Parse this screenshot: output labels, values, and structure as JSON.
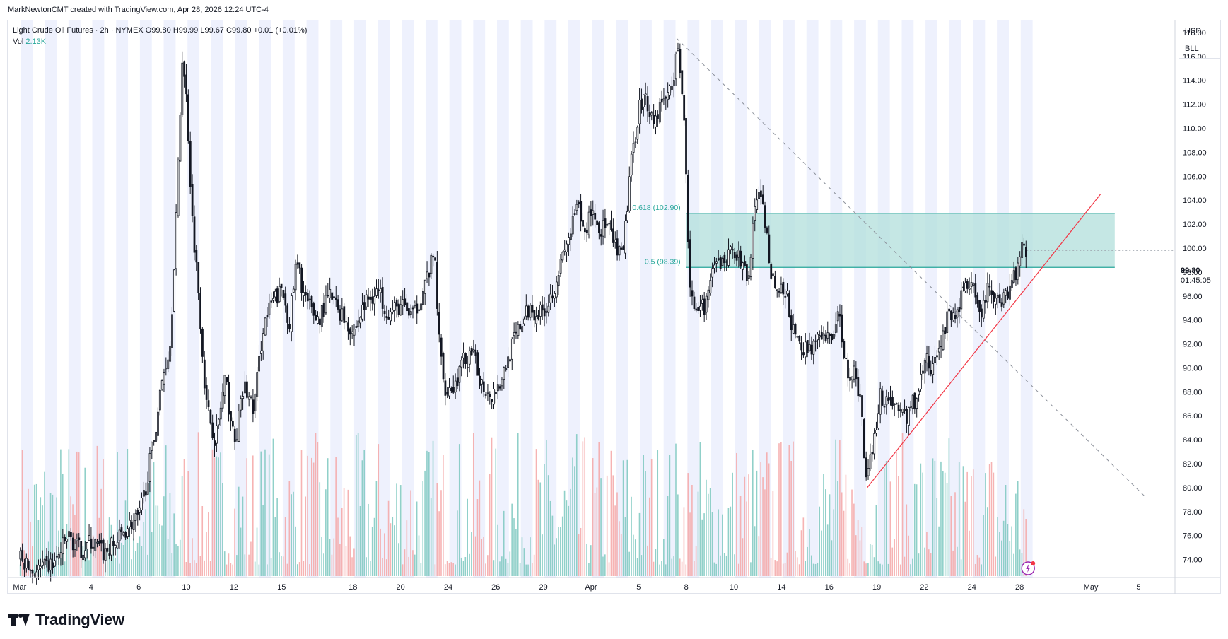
{
  "header": {
    "byline": "MarkNewtonCMT created with TradingView.com, Apr 28, 2026 12:24 UTC-4"
  },
  "legend": {
    "symbol": "Light Crude Oil Futures · 2h · NYMEX",
    "ohlc": "O99.80 H99.99 L99.67 C99.80 +0.01 (+0.01%)",
    "vol_label": "Vol",
    "vol_value": "2.13K"
  },
  "currency": {
    "ccy": "USD",
    "unit": "BLL"
  },
  "last_price": {
    "value": "99.80",
    "countdown": "01:45:05"
  },
  "footer": {
    "brand": "TradingView"
  },
  "colors": {
    "up_volume": "#7dc8c0",
    "down_volume": "#f4a6a6",
    "fib_zone": "#b2dfdb",
    "fib_line": "#26a69a",
    "trendline": "#f23645",
    "session_band": "#eef1fd"
  },
  "chart_data": {
    "type": "candlestick",
    "y_range": [
      72.5,
      119.0
    ],
    "y_ticks": [
      "118.00",
      "116.00",
      "114.00",
      "112.00",
      "110.00",
      "108.00",
      "106.00",
      "104.00",
      "102.00",
      "100.00",
      "98.00",
      "96.00",
      "94.00",
      "92.00",
      "90.00",
      "88.00",
      "86.00",
      "84.00",
      "82.00",
      "80.00",
      "78.00",
      "76.00",
      "74.00"
    ],
    "x_ticks": [
      {
        "label": "Mar",
        "pos": 0.0
      },
      {
        "label": "4",
        "pos": 3
      },
      {
        "label": "6",
        "pos": 5
      },
      {
        "label": "10",
        "pos": 7
      },
      {
        "label": "12",
        "pos": 9
      },
      {
        "label": "15",
        "pos": 11
      },
      {
        "label": "18",
        "pos": 14
      },
      {
        "label": "20",
        "pos": 16
      },
      {
        "label": "24",
        "pos": 18
      },
      {
        "label": "26",
        "pos": 20
      },
      {
        "label": "29",
        "pos": 22
      },
      {
        "label": "Apr",
        "pos": 24
      },
      {
        "label": "5",
        "pos": 26
      },
      {
        "label": "8",
        "pos": 28
      },
      {
        "label": "10",
        "pos": 30
      },
      {
        "label": "14",
        "pos": 32
      },
      {
        "label": "16",
        "pos": 34
      },
      {
        "label": "19",
        "pos": 36
      },
      {
        "label": "22",
        "pos": 38
      },
      {
        "label": "24",
        "pos": 40
      },
      {
        "label": "28",
        "pos": 42
      },
      {
        "label": "May",
        "pos": 45
      },
      {
        "label": "5",
        "pos": 47
      }
    ],
    "x_range": [
      -0.5,
      48.5
    ],
    "last_bar_pos": 42.3,
    "price_path": [
      [
        0.0,
        74.0
      ],
      [
        0.5,
        73.0
      ],
      [
        1.0,
        73.2
      ],
      [
        1.5,
        73.8
      ],
      [
        2.0,
        76.0
      ],
      [
        2.5,
        74.8
      ],
      [
        3.0,
        75.5
      ],
      [
        3.5,
        74.5
      ],
      [
        4.0,
        75.3
      ],
      [
        4.5,
        76.8
      ],
      [
        5.0,
        77.5
      ],
      [
        5.3,
        80.5
      ],
      [
        5.6,
        84.0
      ],
      [
        6.0,
        89.5
      ],
      [
        6.3,
        92.0
      ],
      [
        6.6,
        105.0
      ],
      [
        6.8,
        116.0
      ],
      [
        7.0,
        112.0
      ],
      [
        7.2,
        103.0
      ],
      [
        7.5,
        96.0
      ],
      [
        7.8,
        87.0
      ],
      [
        8.2,
        84.0
      ],
      [
        8.6,
        89.0
      ],
      [
        9.0,
        83.5
      ],
      [
        9.4,
        88.5
      ],
      [
        9.8,
        86.5
      ],
      [
        10.2,
        93.5
      ],
      [
        10.6,
        95.5
      ],
      [
        11.0,
        96.5
      ],
      [
        11.3,
        93.8
      ],
      [
        11.6,
        98.8
      ],
      [
        12.0,
        95.5
      ],
      [
        12.5,
        94.0
      ],
      [
        13.0,
        96.0
      ],
      [
        13.5,
        94.5
      ],
      [
        14.0,
        93.0
      ],
      [
        14.5,
        95.5
      ],
      [
        15.0,
        96.5
      ],
      [
        15.5,
        94.5
      ],
      [
        16.0,
        95.2
      ],
      [
        16.5,
        94.3
      ],
      [
        17.0,
        97.0
      ],
      [
        17.4,
        99.5
      ],
      [
        17.6,
        92.0
      ],
      [
        17.8,
        88.5
      ],
      [
        18.2,
        88.3
      ],
      [
        18.6,
        90.5
      ],
      [
        19.0,
        91.0
      ],
      [
        19.4,
        88.6
      ],
      [
        19.8,
        87.8
      ],
      [
        20.2,
        89.0
      ],
      [
        20.6,
        91.5
      ],
      [
        21.0,
        93.5
      ],
      [
        21.4,
        95.0
      ],
      [
        21.8,
        94.5
      ],
      [
        22.2,
        95.5
      ],
      [
        22.6,
        98.0
      ],
      [
        23.0,
        100.5
      ],
      [
        23.4,
        103.5
      ],
      [
        23.7,
        101.0
      ],
      [
        24.0,
        103.5
      ],
      [
        24.3,
        101.5
      ],
      [
        24.6,
        102.0
      ],
      [
        25.0,
        100.0
      ],
      [
        25.3,
        99.0
      ],
      [
        25.6,
        106.0
      ],
      [
        26.0,
        112.0
      ],
      [
        26.3,
        112.5
      ],
      [
        26.6,
        110.5
      ],
      [
        27.0,
        112.5
      ],
      [
        27.3,
        113.0
      ],
      [
        27.6,
        116.5
      ],
      [
        27.9,
        111.0
      ],
      [
        28.1,
        97.5
      ],
      [
        28.4,
        94.0
      ],
      [
        28.8,
        95.5
      ],
      [
        29.2,
        98.5
      ],
      [
        29.6,
        99.0
      ],
      [
        30.0,
        100.0
      ],
      [
        30.3,
        98.5
      ],
      [
        30.6,
        97.5
      ],
      [
        30.9,
        104.5
      ],
      [
        31.2,
        103.5
      ],
      [
        31.5,
        98.5
      ],
      [
        31.8,
        96.5
      ],
      [
        32.2,
        96.0
      ],
      [
        32.5,
        92.5
      ],
      [
        32.9,
        91.5
      ],
      [
        33.3,
        92.0
      ],
      [
        33.7,
        92.3
      ],
      [
        34.0,
        92.5
      ],
      [
        34.4,
        94.3
      ],
      [
        34.7,
        90.0
      ],
      [
        35.0,
        89.5
      ],
      [
        35.3,
        87.5
      ],
      [
        35.5,
        81.0
      ],
      [
        35.8,
        83.5
      ],
      [
        36.1,
        87.5
      ],
      [
        36.5,
        87.5
      ],
      [
        36.9,
        86.5
      ],
      [
        37.3,
        86.0
      ],
      [
        37.7,
        88.0
      ],
      [
        38.0,
        91.0
      ],
      [
        38.3,
        89.5
      ],
      [
        38.7,
        92.5
      ],
      [
        39.0,
        94.5
      ],
      [
        39.3,
        94.0
      ],
      [
        39.6,
        97.0
      ],
      [
        40.0,
        96.5
      ],
      [
        40.3,
        94.0
      ],
      [
        40.6,
        96.5
      ],
      [
        41.0,
        95.5
      ],
      [
        41.3,
        96.0
      ],
      [
        41.6,
        97.0
      ],
      [
        41.9,
        98.5
      ],
      [
        42.1,
        100.8
      ],
      [
        42.3,
        99.8
      ]
    ],
    "fib_levels": [
      {
        "label": "0.618 (102.90)",
        "value": 102.9
      },
      {
        "label": "0.5 (98.39)",
        "value": 98.39
      }
    ],
    "fib_x_start": 28.0,
    "trendline": {
      "from": [
        35.6,
        80.0
      ],
      "to": [
        45.4,
        104.5
      ]
    },
    "dashed_trendline": {
      "from": [
        27.6,
        117.5
      ],
      "to": [
        47.3,
        79.2
      ]
    },
    "volume_max_height_frac": 0.26
  }
}
